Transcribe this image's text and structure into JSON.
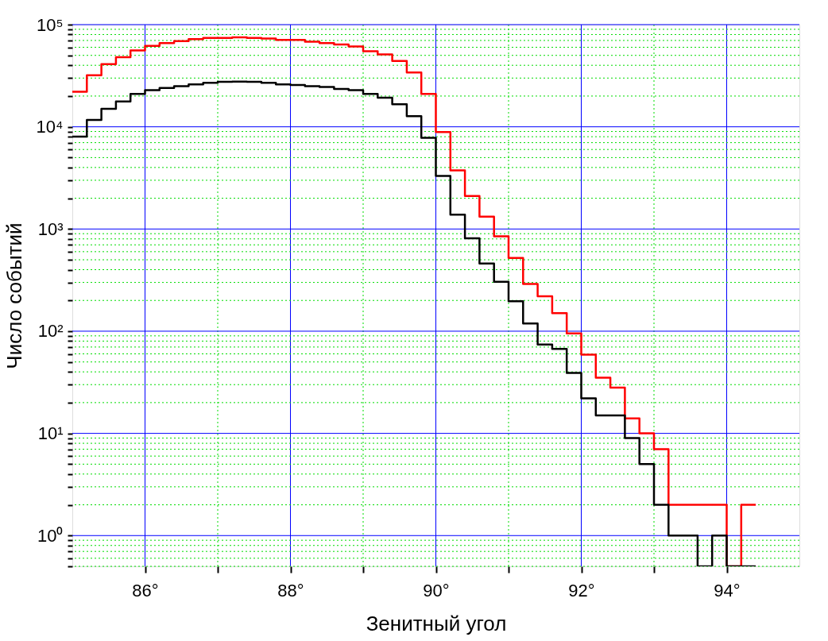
{
  "chart_data": {
    "type": "histogram",
    "xlabel": "Зенитный угол",
    "ylabel": "Число событий",
    "bins": [
      85.0,
      85.2,
      85.4,
      85.6,
      85.8,
      86.0,
      86.2,
      86.4,
      86.6,
      86.8,
      87.0,
      87.2,
      87.4,
      87.6,
      87.8,
      88.0,
      88.2,
      88.4,
      88.6,
      88.8,
      89.0,
      89.2,
      89.4,
      89.6,
      89.8,
      90.0,
      90.2,
      90.4,
      90.6,
      90.8,
      91.0,
      91.2,
      91.4,
      91.6,
      91.8,
      92.0,
      92.2,
      92.4,
      92.6,
      92.8,
      93.0,
      93.2,
      93.4,
      93.6,
      93.8,
      94.0,
      94.2,
      94.4
    ],
    "series": [
      {
        "color": "#ff0000",
        "values": [
          22000,
          32000,
          41000,
          48000,
          56000,
          62000,
          66000,
          69000,
          72000,
          74000,
          74000,
          75000,
          74000,
          73000,
          71000,
          71000,
          68000,
          66000,
          64000,
          61000,
          55000,
          51000,
          44000,
          34000,
          21000,
          8900,
          3750,
          2100,
          1320,
          850,
          520,
          290,
          220,
          150,
          95,
          59,
          35,
          28,
          14,
          10,
          7,
          2,
          2,
          2,
          2,
          null,
          2
        ]
      },
      {
        "color": "#000000",
        "values": [
          8000,
          11700,
          15000,
          17700,
          21000,
          22800,
          24000,
          25000,
          26000,
          27000,
          27600,
          27700,
          27600,
          27000,
          26000,
          25700,
          25000,
          24500,
          23500,
          22800,
          21000,
          19300,
          16600,
          12700,
          7800,
          3300,
          1380,
          810,
          460,
          305,
          196,
          119,
          74,
          67,
          39,
          22,
          15,
          15,
          9,
          5,
          2,
          1,
          1,
          null,
          1,
          null,
          null
        ]
      }
    ],
    "log": "y",
    "grid": true,
    "line_style": "solid",
    "xlim": [
      85,
      95
    ],
    "ylim": [
      0.5,
      100000
    ],
    "xticks": [
      {
        "value": 86,
        "label": "86°"
      },
      {
        "value": 87,
        "label": null
      },
      {
        "value": 88,
        "label": "88°"
      },
      {
        "value": 89,
        "label": null
      },
      {
        "value": 90,
        "label": "90°"
      },
      {
        "value": 91,
        "label": null
      },
      {
        "value": 92,
        "label": "92°"
      },
      {
        "value": 93,
        "label": null
      },
      {
        "value": 94,
        "label": "94°"
      }
    ],
    "yticks": [
      {
        "value": 0.5,
        "label": null
      },
      {
        "value": 0.6,
        "label": null
      },
      {
        "value": 0.7,
        "label": null
      },
      {
        "value": 0.8,
        "label": null
      },
      {
        "value": 0.9,
        "label": null
      },
      {
        "value": 1,
        "label": "10⁰"
      },
      {
        "value": 2,
        "label": null
      },
      {
        "value": 3,
        "label": null
      },
      {
        "value": 4,
        "label": null
      },
      {
        "value": 5,
        "label": null
      },
      {
        "value": 6,
        "label": null
      },
      {
        "value": 7,
        "label": null
      },
      {
        "value": 8,
        "label": null
      },
      {
        "value": 9,
        "label": null
      },
      {
        "value": 10,
        "label": "10¹"
      },
      {
        "value": 20,
        "label": null
      },
      {
        "value": 30,
        "label": null
      },
      {
        "value": 40,
        "label": null
      },
      {
        "value": 50,
        "label": null
      },
      {
        "value": 60,
        "label": null
      },
      {
        "value": 70,
        "label": null
      },
      {
        "value": 80,
        "label": null
      },
      {
        "value": 90,
        "label": null
      },
      {
        "value": 100,
        "label": "10²"
      },
      {
        "value": 200,
        "label": null
      },
      {
        "value": 300,
        "label": null
      },
      {
        "value": 400,
        "label": null
      },
      {
        "value": 500,
        "label": null
      },
      {
        "value": 600,
        "label": null
      },
      {
        "value": 700,
        "label": null
      },
      {
        "value": 800,
        "label": null
      },
      {
        "value": 900,
        "label": null
      },
      {
        "value": 1000,
        "label": "10³"
      },
      {
        "value": 2000,
        "label": null
      },
      {
        "value": 3000,
        "label": null
      },
      {
        "value": 4000,
        "label": null
      },
      {
        "value": 5000,
        "label": null
      },
      {
        "value": 6000,
        "label": null
      },
      {
        "value": 7000,
        "label": null
      },
      {
        "value": 8000,
        "label": null
      },
      {
        "value": 9000,
        "label": null
      },
      {
        "value": 10000,
        "label": "10⁴"
      },
      {
        "value": 20000,
        "label": null
      },
      {
        "value": 30000,
        "label": null
      },
      {
        "value": 40000,
        "label": null
      },
      {
        "value": 50000,
        "label": null
      },
      {
        "value": 60000,
        "label": null
      },
      {
        "value": 70000,
        "label": null
      },
      {
        "value": 80000,
        "label": null
      },
      {
        "value": 90000,
        "label": null
      },
      {
        "value": 100000,
        "label": "10⁵"
      }
    ]
  }
}
